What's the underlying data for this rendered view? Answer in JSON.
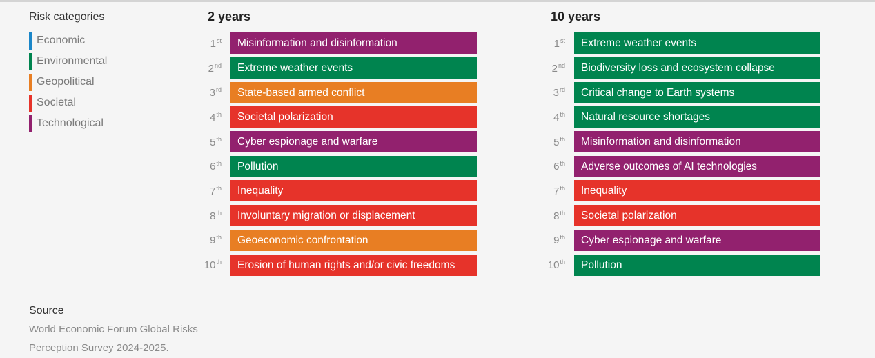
{
  "legend": {
    "title": "Risk categories",
    "items": [
      {
        "label": "Economic",
        "color": "#1a86c8"
      },
      {
        "label": "Environmental",
        "color": "#00844f"
      },
      {
        "label": "Geopolitical",
        "color": "#e87e23"
      },
      {
        "label": "Societal",
        "color": "#e6332a"
      },
      {
        "label": "Technological",
        "color": "#92216e"
      }
    ]
  },
  "chart_data": {
    "type": "table",
    "columns": [
      {
        "title": "2 years",
        "rows": [
          {
            "rank": "1",
            "suffix": "st",
            "label": "Misinformation and disinformation",
            "category": "Technological"
          },
          {
            "rank": "2",
            "suffix": "nd",
            "label": "Extreme weather events",
            "category": "Environmental"
          },
          {
            "rank": "3",
            "suffix": "rd",
            "label": "State-based armed conflict",
            "category": "Geopolitical"
          },
          {
            "rank": "4",
            "suffix": "th",
            "label": "Societal polarization",
            "category": "Societal"
          },
          {
            "rank": "5",
            "suffix": "th",
            "label": "Cyber espionage and warfare",
            "category": "Technological"
          },
          {
            "rank": "6",
            "suffix": "th",
            "label": "Pollution",
            "category": "Environmental"
          },
          {
            "rank": "7",
            "suffix": "th",
            "label": "Inequality",
            "category": "Societal"
          },
          {
            "rank": "8",
            "suffix": "th",
            "label": "Involuntary migration or displacement",
            "category": "Societal"
          },
          {
            "rank": "9",
            "suffix": "th",
            "label": "Geoeconomic confrontation",
            "category": "Geopolitical"
          },
          {
            "rank": "10",
            "suffix": "th",
            "label": "Erosion of human rights and/or civic freedoms",
            "category": "Societal"
          }
        ]
      },
      {
        "title": "10 years",
        "rows": [
          {
            "rank": "1",
            "suffix": "st",
            "label": "Extreme weather events",
            "category": "Environmental"
          },
          {
            "rank": "2",
            "suffix": "nd",
            "label": "Biodiversity loss and ecosystem collapse",
            "category": "Environmental"
          },
          {
            "rank": "3",
            "suffix": "rd",
            "label": "Critical change to Earth systems",
            "category": "Environmental"
          },
          {
            "rank": "4",
            "suffix": "th",
            "label": "Natural resource shortages",
            "category": "Environmental"
          },
          {
            "rank": "5",
            "suffix": "th",
            "label": "Misinformation and disinformation",
            "category": "Technological"
          },
          {
            "rank": "6",
            "suffix": "th",
            "label": "Adverse outcomes of AI technologies",
            "category": "Technological"
          },
          {
            "rank": "7",
            "suffix": "th",
            "label": "Inequality",
            "category": "Societal"
          },
          {
            "rank": "8",
            "suffix": "th",
            "label": "Societal polarization",
            "category": "Societal"
          },
          {
            "rank": "9",
            "suffix": "th",
            "label": "Cyber espionage and warfare",
            "category": "Technological"
          },
          {
            "rank": "10",
            "suffix": "th",
            "label": "Pollution",
            "category": "Environmental"
          }
        ]
      }
    ]
  },
  "source": {
    "title": "Source",
    "text": "World Economic Forum Global Risks Perception Survey 2024-2025."
  }
}
